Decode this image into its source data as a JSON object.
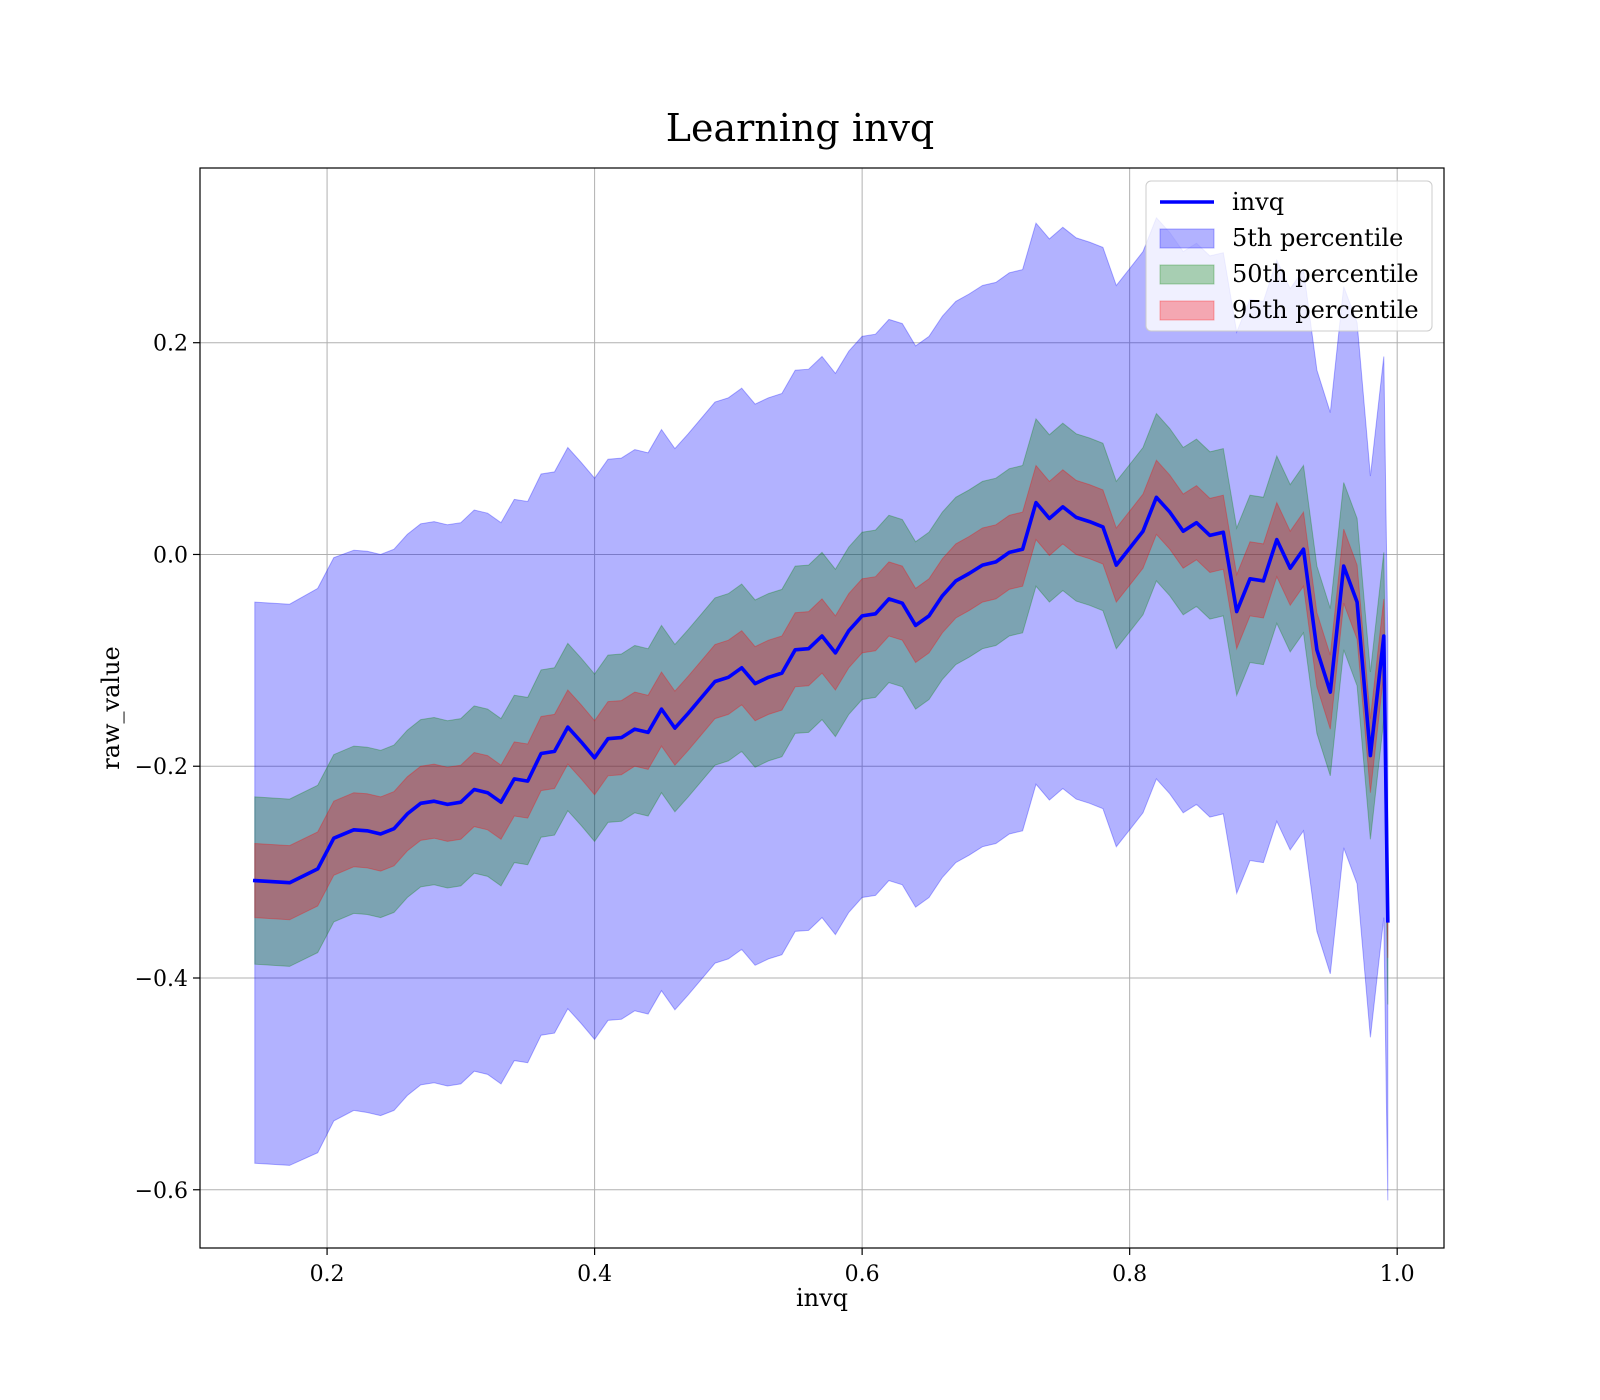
{
  "chart_data": {
    "type": "area",
    "title": "Learning invq",
    "xlabel": "invq",
    "ylabel": "raw_value",
    "xlim": [
      0.105,
      1.035
    ],
    "ylim": [
      -0.655,
      0.365
    ],
    "grid": true,
    "legend_position": "top-right",
    "x_ticks": [
      0.2,
      0.4,
      0.6,
      0.8,
      1.0
    ],
    "x_tick_labels": [
      "0.2",
      "0.4",
      "0.6",
      "0.8",
      "1.0"
    ],
    "y_ticks": [
      -0.6,
      -0.4,
      -0.2,
      0.0,
      0.2
    ],
    "y_tick_labels": [
      "−0.6",
      "−0.4",
      "−0.2",
      "0.0",
      "0.2"
    ],
    "legend": [
      {
        "label": "invq",
        "kind": "line",
        "color": "#0000ff"
      },
      {
        "label": "5th percentile",
        "kind": "patch",
        "color": "#0000ff",
        "alpha": 0.3
      },
      {
        "label": "50th percentile",
        "kind": "patch",
        "color": "#008000",
        "alpha": 0.3
      },
      {
        "label": "95th percentile",
        "kind": "patch",
        "color": "#ff0000",
        "alpha": 0.3
      }
    ],
    "x": [
      0.146,
      0.172,
      0.193,
      0.205,
      0.22,
      0.23,
      0.24,
      0.25,
      0.26,
      0.27,
      0.28,
      0.29,
      0.3,
      0.31,
      0.32,
      0.33,
      0.34,
      0.35,
      0.36,
      0.37,
      0.38,
      0.39,
      0.4,
      0.41,
      0.42,
      0.43,
      0.44,
      0.45,
      0.46,
      0.47,
      0.48,
      0.49,
      0.5,
      0.51,
      0.52,
      0.53,
      0.54,
      0.55,
      0.56,
      0.57,
      0.58,
      0.59,
      0.6,
      0.61,
      0.62,
      0.63,
      0.64,
      0.65,
      0.66,
      0.67,
      0.68,
      0.69,
      0.7,
      0.71,
      0.72,
      0.73,
      0.74,
      0.75,
      0.76,
      0.77,
      0.78,
      0.79,
      0.8,
      0.81,
      0.82,
      0.83,
      0.84,
      0.85,
      0.86,
      0.87,
      0.88,
      0.89,
      0.9,
      0.91,
      0.92,
      0.93,
      0.94,
      0.95,
      0.96,
      0.97,
      0.98,
      0.99,
      0.993
    ],
    "series": [
      {
        "name": "invq",
        "color": "#0000ff",
        "values": [
          -0.308,
          -0.31,
          -0.297,
          -0.268,
          -0.26,
          -0.261,
          -0.264,
          -0.259,
          -0.245,
          -0.235,
          -0.233,
          -0.236,
          -0.234,
          -0.222,
          -0.225,
          -0.234,
          -0.212,
          -0.214,
          -0.188,
          -0.186,
          -0.163,
          -0.177,
          -0.192,
          -0.174,
          -0.173,
          -0.165,
          -0.168,
          -0.146,
          -0.164,
          -0.15,
          -0.135,
          -0.12,
          -0.116,
          -0.107,
          -0.122,
          -0.116,
          -0.112,
          -0.09,
          -0.089,
          -0.077,
          -0.093,
          -0.072,
          -0.058,
          -0.056,
          -0.042,
          -0.046,
          -0.067,
          -0.058,
          -0.039,
          -0.025,
          -0.018,
          -0.01,
          -0.007,
          0.002,
          0.005,
          0.049,
          0.034,
          0.045,
          0.035,
          0.031,
          0.026,
          -0.01,
          0.006,
          0.022,
          0.054,
          0.04,
          0.022,
          0.03,
          0.018,
          0.021,
          -0.054,
          -0.023,
          -0.025,
          0.014,
          -0.013,
          0.005,
          -0.09,
          -0.13,
          -0.011,
          -0.045,
          -0.19,
          -0.077,
          -0.346
        ]
      }
    ],
    "bands": [
      {
        "name": "5th percentile",
        "color": "#0000ff",
        "alpha": 0.3,
        "lower": [
          -0.575,
          -0.577,
          -0.565,
          -0.535,
          -0.525,
          -0.527,
          -0.53,
          -0.525,
          -0.511,
          -0.501,
          -0.499,
          -0.502,
          -0.5,
          -0.488,
          -0.491,
          -0.5,
          -0.478,
          -0.48,
          -0.454,
          -0.452,
          -0.429,
          -0.443,
          -0.458,
          -0.44,
          -0.439,
          -0.431,
          -0.434,
          -0.412,
          -0.43,
          -0.416,
          -0.401,
          -0.386,
          -0.382,
          -0.373,
          -0.388,
          -0.382,
          -0.378,
          -0.356,
          -0.355,
          -0.343,
          -0.359,
          -0.338,
          -0.324,
          -0.322,
          -0.308,
          -0.312,
          -0.333,
          -0.324,
          -0.305,
          -0.291,
          -0.284,
          -0.276,
          -0.273,
          -0.264,
          -0.261,
          -0.217,
          -0.232,
          -0.221,
          -0.231,
          -0.235,
          -0.24,
          -0.276,
          -0.26,
          -0.244,
          -0.212,
          -0.226,
          -0.244,
          -0.236,
          -0.248,
          -0.245,
          -0.32,
          -0.289,
          -0.291,
          -0.252,
          -0.279,
          -0.261,
          -0.356,
          -0.396,
          -0.277,
          -0.311,
          -0.456,
          -0.343,
          -0.61
        ],
        "upper": [
          -0.045,
          -0.047,
          -0.032,
          -0.003,
          0.004,
          0.003,
          0.0,
          0.005,
          0.019,
          0.029,
          0.031,
          0.028,
          0.03,
          0.042,
          0.039,
          0.03,
          0.052,
          0.05,
          0.076,
          0.078,
          0.101,
          0.087,
          0.072,
          0.09,
          0.091,
          0.099,
          0.096,
          0.118,
          0.1,
          0.114,
          0.129,
          0.144,
          0.148,
          0.157,
          0.142,
          0.148,
          0.152,
          0.174,
          0.175,
          0.187,
          0.171,
          0.192,
          0.206,
          0.208,
          0.222,
          0.218,
          0.197,
          0.206,
          0.225,
          0.239,
          0.246,
          0.254,
          0.257,
          0.266,
          0.269,
          0.313,
          0.298,
          0.309,
          0.299,
          0.295,
          0.29,
          0.254,
          0.27,
          0.286,
          0.318,
          0.304,
          0.286,
          0.294,
          0.282,
          0.285,
          0.21,
          0.241,
          0.239,
          0.278,
          0.251,
          0.269,
          0.174,
          0.134,
          0.253,
          0.219,
          0.074,
          0.187,
          -0.08
        ]
      },
      {
        "name": "50th percentile",
        "color": "#008000",
        "alpha": 0.3,
        "lower": [
          -0.387,
          -0.389,
          -0.376,
          -0.347,
          -0.339,
          -0.34,
          -0.343,
          -0.338,
          -0.324,
          -0.314,
          -0.312,
          -0.315,
          -0.313,
          -0.301,
          -0.304,
          -0.313,
          -0.291,
          -0.293,
          -0.267,
          -0.265,
          -0.242,
          -0.256,
          -0.271,
          -0.253,
          -0.252,
          -0.244,
          -0.247,
          -0.225,
          -0.243,
          -0.229,
          -0.214,
          -0.199,
          -0.195,
          -0.186,
          -0.201,
          -0.195,
          -0.191,
          -0.169,
          -0.168,
          -0.156,
          -0.172,
          -0.151,
          -0.137,
          -0.135,
          -0.121,
          -0.125,
          -0.146,
          -0.137,
          -0.118,
          -0.104,
          -0.097,
          -0.089,
          -0.086,
          -0.077,
          -0.074,
          -0.03,
          -0.045,
          -0.034,
          -0.044,
          -0.048,
          -0.053,
          -0.089,
          -0.073,
          -0.057,
          -0.025,
          -0.039,
          -0.057,
          -0.049,
          -0.061,
          -0.058,
          -0.133,
          -0.102,
          -0.104,
          -0.065,
          -0.092,
          -0.074,
          -0.169,
          -0.209,
          -0.09,
          -0.124,
          -0.269,
          -0.156,
          -0.425
        ],
        "upper": [
          -0.229,
          -0.231,
          -0.218,
          -0.189,
          -0.181,
          -0.182,
          -0.185,
          -0.18,
          -0.166,
          -0.156,
          -0.154,
          -0.157,
          -0.155,
          -0.143,
          -0.146,
          -0.155,
          -0.133,
          -0.135,
          -0.109,
          -0.107,
          -0.084,
          -0.098,
          -0.113,
          -0.095,
          -0.094,
          -0.086,
          -0.089,
          -0.067,
          -0.085,
          -0.071,
          -0.056,
          -0.041,
          -0.037,
          -0.028,
          -0.043,
          -0.037,
          -0.033,
          -0.011,
          -0.01,
          0.002,
          -0.014,
          0.007,
          0.021,
          0.023,
          0.037,
          0.033,
          0.012,
          0.021,
          0.04,
          0.054,
          0.061,
          0.069,
          0.072,
          0.081,
          0.084,
          0.128,
          0.113,
          0.124,
          0.114,
          0.11,
          0.105,
          0.069,
          0.085,
          0.101,
          0.133,
          0.119,
          0.101,
          0.109,
          0.097,
          0.1,
          0.025,
          0.056,
          0.054,
          0.093,
          0.066,
          0.084,
          -0.011,
          -0.051,
          0.068,
          0.034,
          -0.111,
          0.002,
          -0.267
        ]
      },
      {
        "name": "95th percentile",
        "color": "#ff0000",
        "alpha": 0.3,
        "lower": [
          -0.343,
          -0.345,
          -0.332,
          -0.303,
          -0.295,
          -0.296,
          -0.299,
          -0.294,
          -0.28,
          -0.27,
          -0.268,
          -0.271,
          -0.269,
          -0.257,
          -0.26,
          -0.269,
          -0.247,
          -0.249,
          -0.223,
          -0.221,
          -0.198,
          -0.212,
          -0.227,
          -0.209,
          -0.208,
          -0.2,
          -0.203,
          -0.181,
          -0.199,
          -0.185,
          -0.17,
          -0.155,
          -0.151,
          -0.142,
          -0.157,
          -0.151,
          -0.147,
          -0.125,
          -0.124,
          -0.112,
          -0.128,
          -0.107,
          -0.093,
          -0.091,
          -0.077,
          -0.081,
          -0.102,
          -0.093,
          -0.074,
          -0.06,
          -0.053,
          -0.045,
          -0.042,
          -0.033,
          -0.03,
          0.014,
          -0.001,
          0.01,
          0.0,
          -0.004,
          -0.009,
          -0.045,
          -0.029,
          -0.013,
          0.019,
          0.005,
          -0.013,
          -0.005,
          -0.017,
          -0.014,
          -0.089,
          -0.058,
          -0.06,
          -0.021,
          -0.048,
          -0.03,
          -0.125,
          -0.165,
          -0.046,
          -0.08,
          -0.225,
          -0.112,
          -0.381
        ],
        "upper": [
          -0.273,
          -0.275,
          -0.262,
          -0.233,
          -0.225,
          -0.226,
          -0.229,
          -0.224,
          -0.21,
          -0.2,
          -0.198,
          -0.201,
          -0.199,
          -0.187,
          -0.19,
          -0.199,
          -0.177,
          -0.179,
          -0.153,
          -0.151,
          -0.128,
          -0.142,
          -0.157,
          -0.139,
          -0.138,
          -0.13,
          -0.133,
          -0.111,
          -0.129,
          -0.115,
          -0.1,
          -0.085,
          -0.081,
          -0.072,
          -0.087,
          -0.081,
          -0.077,
          -0.055,
          -0.054,
          -0.042,
          -0.058,
          -0.037,
          -0.023,
          -0.021,
          -0.007,
          -0.011,
          -0.032,
          -0.023,
          -0.004,
          0.01,
          0.017,
          0.025,
          0.028,
          0.037,
          0.04,
          0.084,
          0.069,
          0.08,
          0.07,
          0.066,
          0.061,
          0.025,
          0.041,
          0.057,
          0.089,
          0.075,
          0.057,
          0.065,
          0.053,
          0.056,
          -0.019,
          0.012,
          0.01,
          0.049,
          0.022,
          0.04,
          -0.055,
          -0.095,
          0.024,
          -0.01,
          -0.155,
          -0.042,
          -0.311
        ]
      }
    ]
  }
}
